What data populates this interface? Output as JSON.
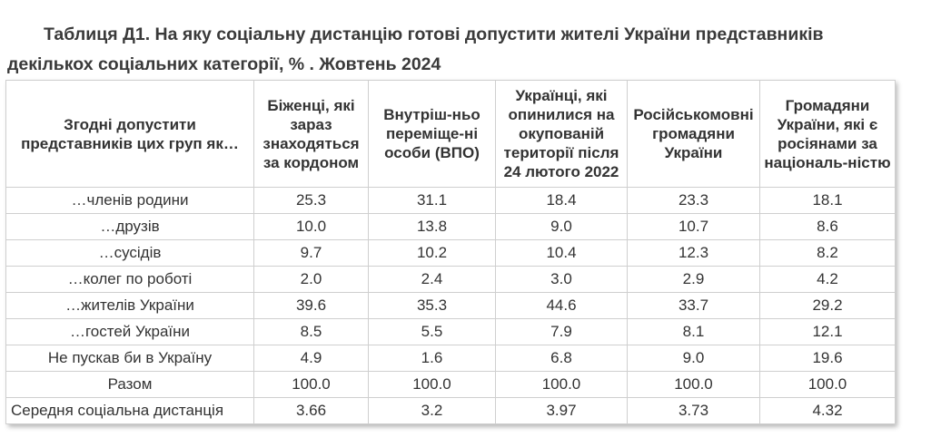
{
  "title": {
    "line1": "Таблиця Д1.  На яку соціальну дистанцію готові допустити жителі України представників",
    "line2": "декількох соціальних категорії, % . Жовтень 2024"
  },
  "table": {
    "headers": [
      "Згодні допустити представників цих груп як…",
      "Біженці, які зараз знаходяться за кордоном",
      "Внутріш-ньо переміще-ні особи (ВПО)",
      "Українці, які опинилися на окупованій території після 24 лютого 2022",
      "Російськомовні громадяни України",
      "Громадяни України, які є росіянами за національ-ністю"
    ],
    "rows": [
      {
        "label": "…членів родини",
        "values": [
          "25.3",
          "31.1",
          "18.4",
          "23.3",
          "18.1"
        ]
      },
      {
        "label": "…друзів",
        "values": [
          "10.0",
          "13.8",
          "9.0",
          "10.7",
          "8.6"
        ]
      },
      {
        "label": "…сусідів",
        "values": [
          "9.7",
          "10.2",
          "10.4",
          "12.3",
          "8.2"
        ]
      },
      {
        "label": "…колег по роботі",
        "values": [
          "2.0",
          "2.4",
          "3.0",
          "2.9",
          "4.2"
        ]
      },
      {
        "label": "…жителів України",
        "values": [
          "39.6",
          "35.3",
          "44.6",
          "33.7",
          "29.2"
        ]
      },
      {
        "label": "…гостей України",
        "values": [
          "8.5",
          "5.5",
          "7.9",
          "8.1",
          "12.1"
        ]
      },
      {
        "label": "Не пускав би в Україну",
        "values": [
          "4.9",
          "1.6",
          "6.8",
          "9.0",
          "19.6"
        ]
      },
      {
        "label": "Разом",
        "values": [
          "100.0",
          "100.0",
          "100.0",
          "100.0",
          "100.0"
        ]
      },
      {
        "label": "Середня соціальна дистанція",
        "values": [
          "3.66",
          "3.2",
          "3.97",
          "3.73",
          "4.32"
        ]
      }
    ]
  }
}
